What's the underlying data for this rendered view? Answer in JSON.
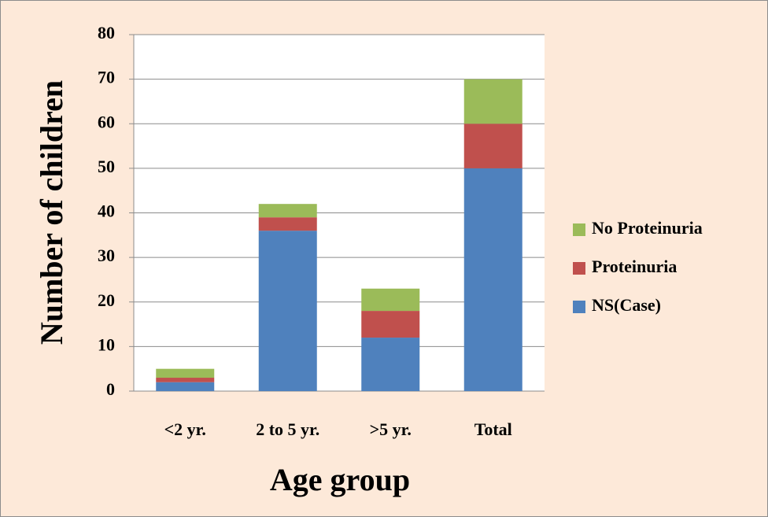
{
  "chart_data": {
    "type": "stacked_bar",
    "x_label": "Age group",
    "y_label": "Number of children",
    "categories": [
      "<2 yr.",
      "2 to 5 yr.",
      ">5 yr.",
      "Total"
    ],
    "series": [
      {
        "name": "NS(Case)",
        "color": "#4f81bd",
        "values": [
          2,
          36,
          12,
          50
        ]
      },
      {
        "name": "Proteinuria",
        "color": "#c0504d",
        "values": [
          1,
          3,
          6,
          10
        ]
      },
      {
        "name": "No Proteinuria",
        "color": "#9bbb59",
        "values": [
          2,
          3,
          5,
          10
        ]
      }
    ],
    "ylim": [
      0,
      80
    ],
    "yticks": [
      0,
      10,
      20,
      30,
      40,
      50,
      60,
      70,
      80
    ],
    "grid": true,
    "legend": "right"
  }
}
